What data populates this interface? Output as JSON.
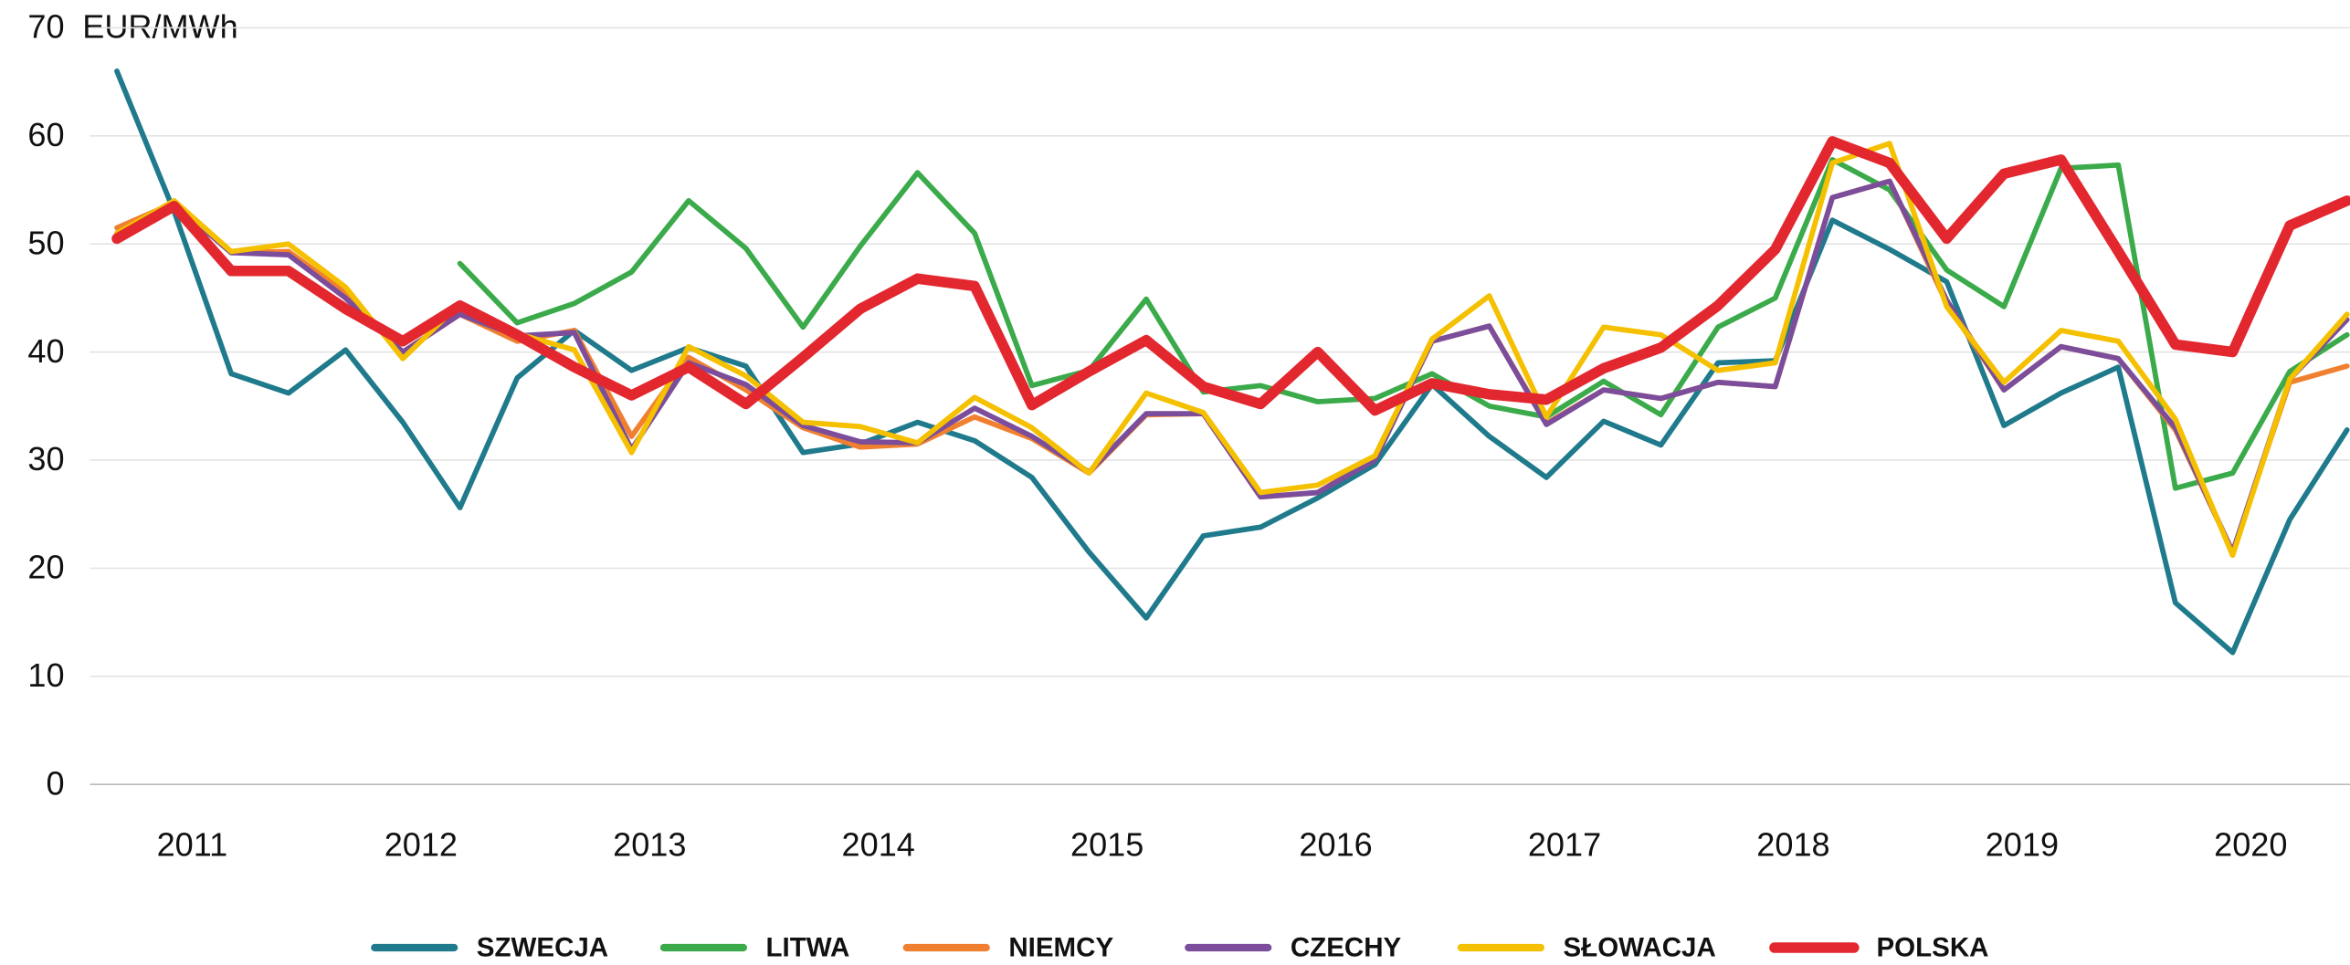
{
  "chart_data": {
    "type": "line",
    "y_unit": "EUR/MWh",
    "categories": [
      "2011",
      null,
      null,
      null,
      "2012",
      null,
      null,
      null,
      "2013",
      null,
      null,
      null,
      "2014",
      null,
      null,
      null,
      "2015",
      null,
      null,
      null,
      "2016",
      null,
      null,
      null,
      "2017",
      null,
      null,
      null,
      "2018",
      null,
      null,
      null,
      "2019",
      null,
      null,
      null,
      "2020",
      null,
      null,
      null
    ],
    "ylim": [
      0,
      70
    ],
    "yticks": [
      0,
      10,
      20,
      30,
      40,
      50,
      60,
      70
    ],
    "grid": true,
    "legend": "bottom",
    "series": [
      {
        "name": "SZWECJA",
        "color": "#1f7a8c",
        "values": [
          66,
          53,
          38,
          36.2,
          40.2,
          33.5,
          25.6,
          37.6,
          42,
          38.3,
          40.4,
          38.7,
          30.7,
          31.5,
          33.5,
          31.8,
          28.4,
          21.5,
          15.4,
          23,
          23.8,
          26.5,
          29.6,
          37,
          32.2,
          28.4,
          33.6,
          31.4,
          39,
          39.2,
          52.2,
          49.5,
          46.5,
          33.2,
          36.2,
          38.6,
          16.8,
          12.2,
          24.5,
          32.8
        ]
      },
      {
        "name": "LITWA",
        "color": "#3aaa4a",
        "values": [
          null,
          null,
          null,
          null,
          null,
          null,
          48.2,
          42.7,
          44.5,
          47.4,
          54,
          49.6,
          42.3,
          49.8,
          56.6,
          51,
          36.9,
          38.3,
          44.9,
          36.3,
          36.9,
          35.4,
          35.7,
          38,
          35,
          34,
          37.3,
          34.2,
          42.3,
          45,
          57.8,
          55,
          47.6,
          44.2,
          57,
          57.3,
          27.4,
          28.8,
          38.2,
          41.6
        ]
      },
      {
        "name": "NIEMCY",
        "color": "#f08030",
        "values": [
          51.5,
          53.8,
          49.2,
          49.3,
          45.5,
          40,
          43.5,
          41,
          42,
          32.2,
          39.5,
          36.5,
          33,
          31.2,
          31.5,
          34,
          32,
          28.8,
          34.2,
          34.3,
          26.6,
          27,
          30.2,
          41,
          42.4,
          33.4,
          36.5,
          35.7,
          37.2,
          36.8,
          54.3,
          55.8,
          44.5,
          36.5,
          40.5,
          39.4,
          32.8,
          21.5,
          37.2,
          38.7
        ]
      },
      {
        "name": "CZECHY",
        "color": "#7b4d9a",
        "values": [
          51,
          53.7,
          49.2,
          49,
          45,
          40,
          43.5,
          41.5,
          41.8,
          31,
          39,
          37,
          33.2,
          31.7,
          31.6,
          34.8,
          32.2,
          28.9,
          34.3,
          34.3,
          26.6,
          27,
          30,
          41,
          42.4,
          33.3,
          36.5,
          35.7,
          37.2,
          36.8,
          54.3,
          55.8,
          44.8,
          36.5,
          40.5,
          39.4,
          33,
          21.5,
          37.5,
          43
        ]
      },
      {
        "name": "SŁOWACJA",
        "color": "#f5c000",
        "values": [
          51,
          54,
          49.3,
          50,
          46,
          39.4,
          44.5,
          41.7,
          40.2,
          30.7,
          40.5,
          37.8,
          33.5,
          33.1,
          31.6,
          35.8,
          33,
          28.8,
          36.2,
          34.4,
          27,
          27.7,
          30.4,
          41.2,
          45.2,
          34,
          42.3,
          41.6,
          38.3,
          39,
          57.5,
          59.3,
          44.2,
          37.2,
          42,
          41,
          33.8,
          21.2,
          37.5,
          43.5
        ]
      },
      {
        "name": "POLSKA",
        "color": "#e3272f",
        "values": [
          50.5,
          53.5,
          47.5,
          47.5,
          44,
          41,
          44.3,
          41.6,
          38.6,
          36,
          38.6,
          35.2,
          39.5,
          44,
          46.8,
          46.1,
          35.1,
          38.2,
          41.1,
          36.8,
          35.2,
          40,
          34.6,
          37.1,
          36.1,
          35.6,
          38.5,
          40.4,
          44.3,
          49.5,
          59.5,
          57.5,
          50.5,
          56.5,
          57.8,
          49.3,
          40.7,
          40,
          51.7,
          54
        ]
      }
    ]
  }
}
